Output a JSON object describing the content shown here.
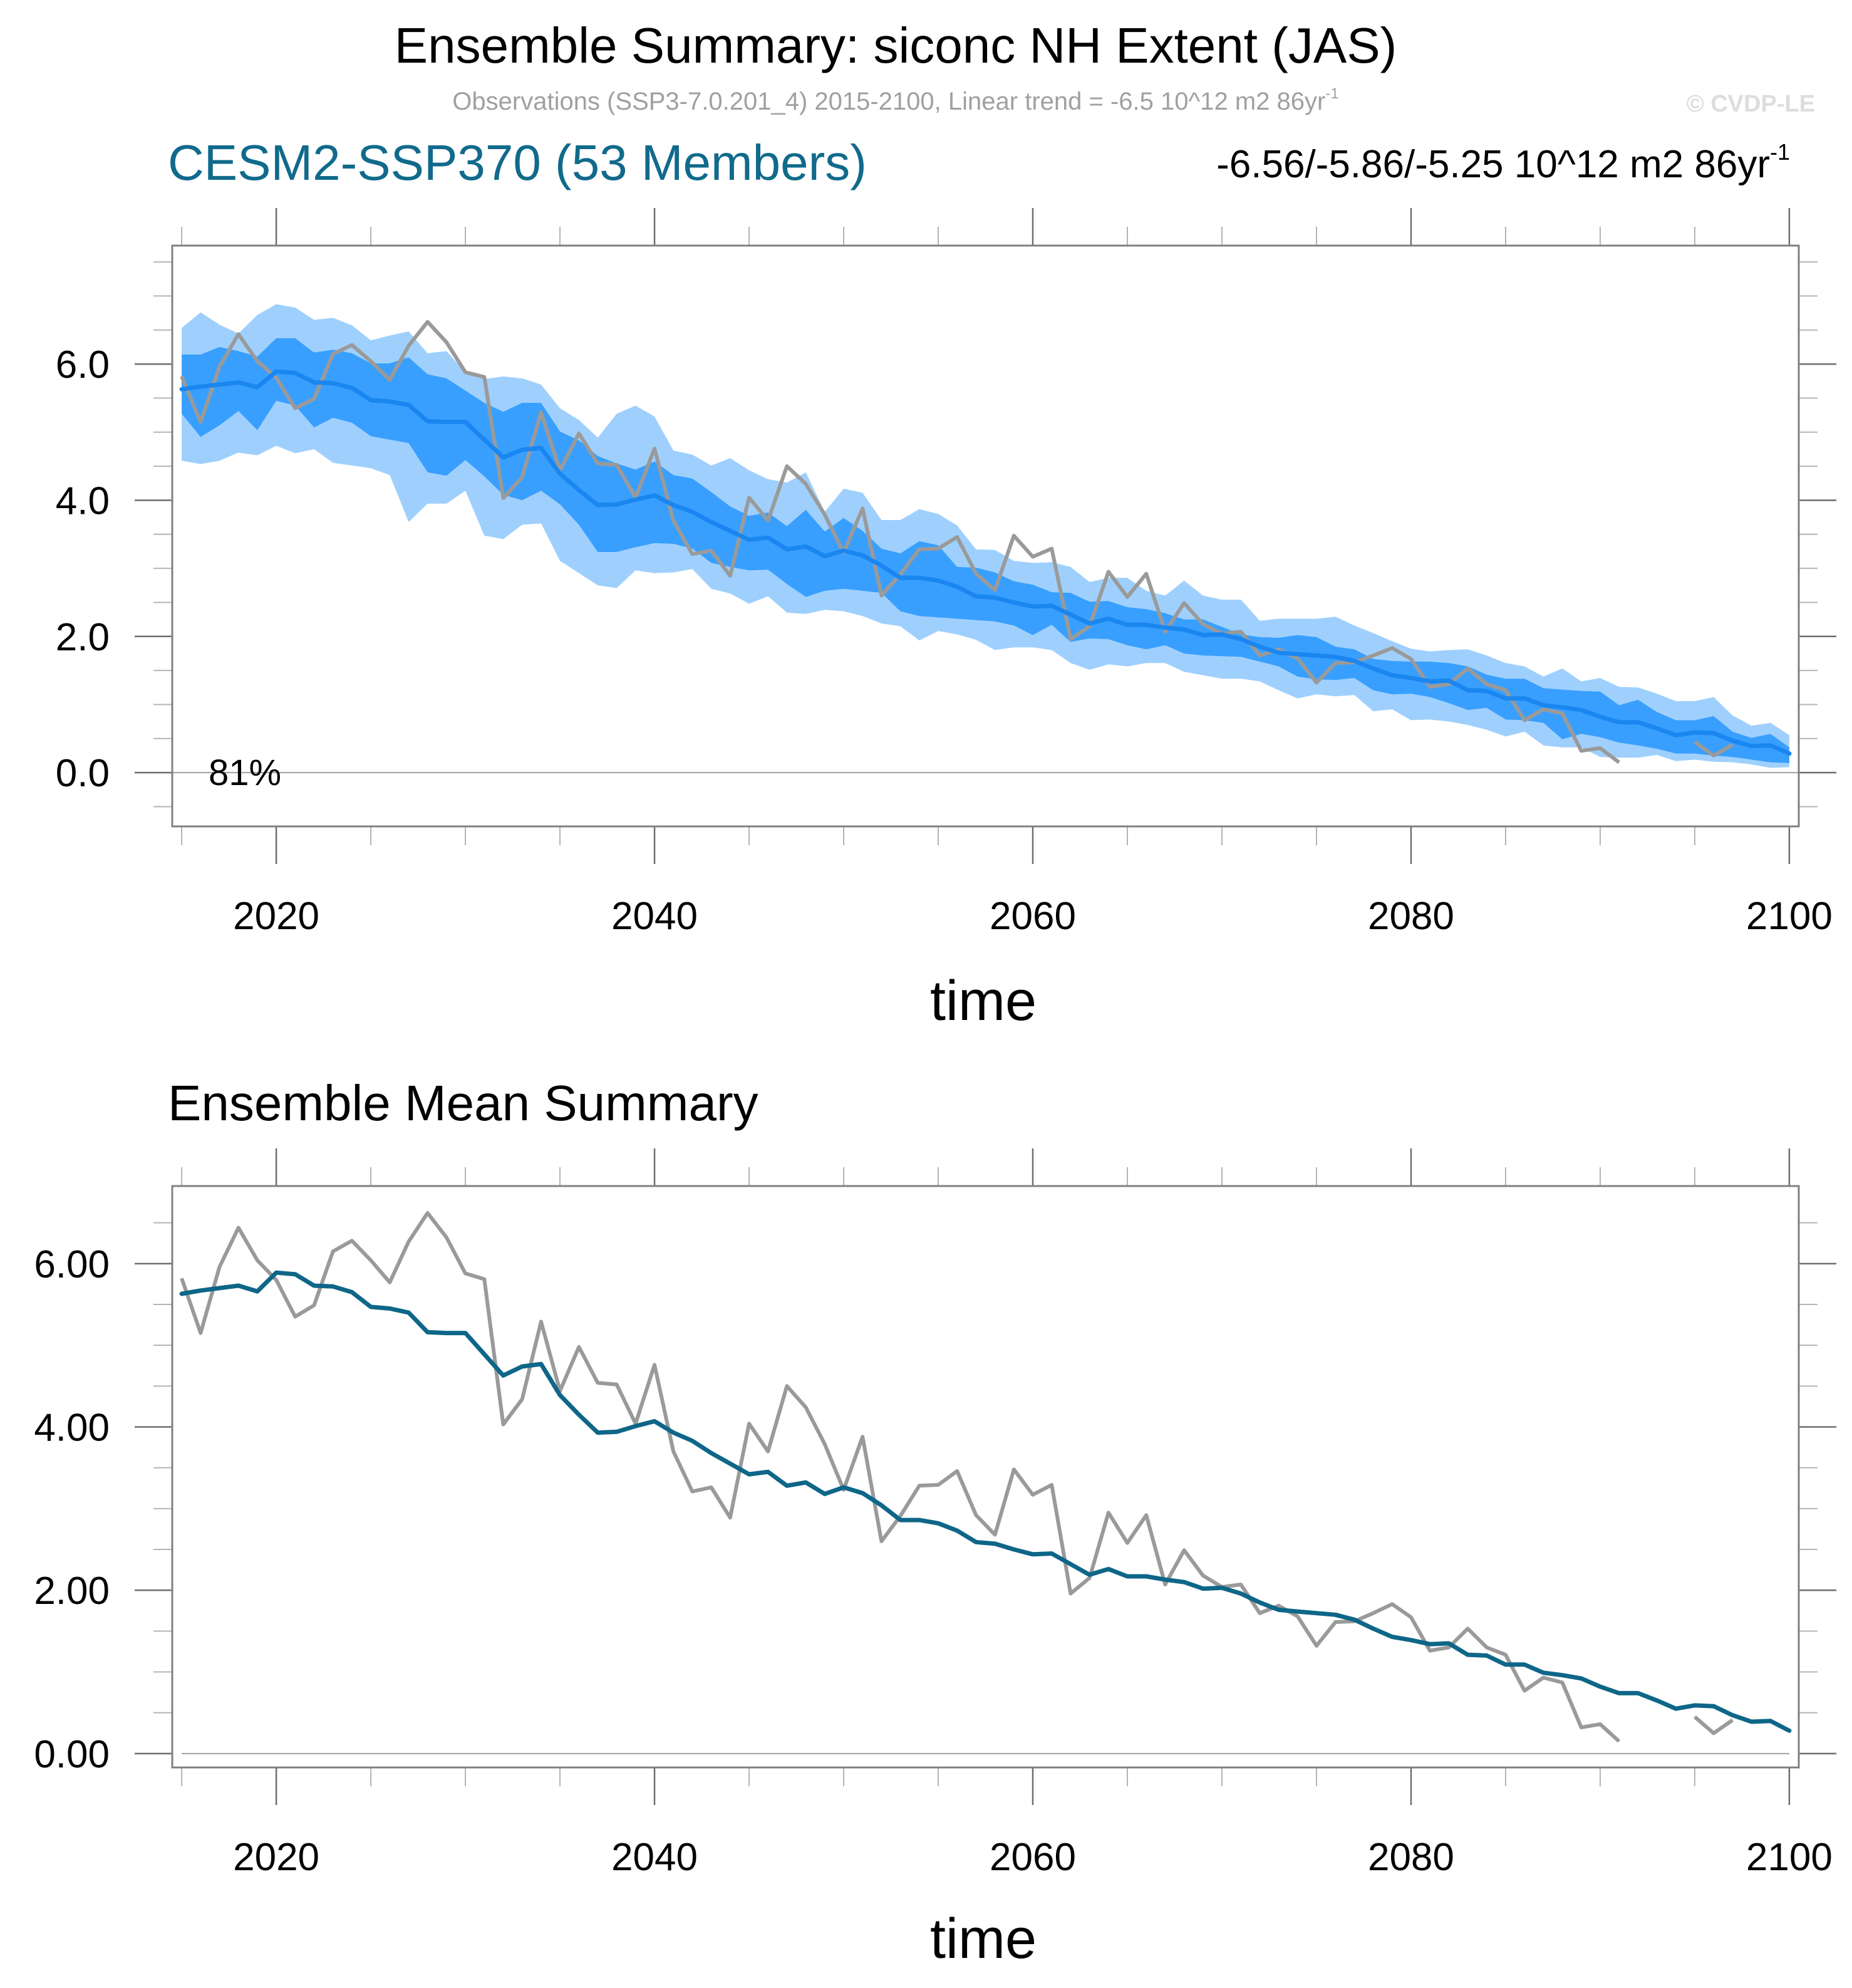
{
  "header": {
    "title": "Ensemble Summary: siconc NH Extent (JAS)",
    "subtitle": "Observations (SSP3-7.0.201_4) 2015-2100, Linear trend = -6.5 10^12 m2 86yr",
    "subtitle_superscript": "-1",
    "copyright": "© CVDP-LE",
    "model_title": "CESM2-SSP370 (53 Members)",
    "trend_range": "-6.56/-5.86/-5.25 10^12 m2 86yr",
    "trend_range_superscript": "-1"
  },
  "colors": {
    "outer_band": "#9fd0fd",
    "inner_band": "#399ffe",
    "mean_line_top": "#1a86f0",
    "mean_line_bottom": "#0e6688",
    "observations": "#9a9a9a",
    "model_title": "#106a8b",
    "subtitle": "#a0a0a0",
    "copyright": "#dddddd"
  },
  "chart_data": [
    {
      "type": "area",
      "name": "ensemble-summary",
      "title": "CESM2-SSP370 (53 Members)",
      "xlabel": "time",
      "ylabel": "",
      "xlim": [
        2014.5,
        2100.5
      ],
      "ylim": [
        -0.79,
        7.74
      ],
      "xticks": [
        2020,
        2040,
        2060,
        2080,
        2100
      ],
      "xtick_labels": [
        "2020",
        "2040",
        "2060",
        "2080",
        "2100"
      ],
      "yticks": [
        0,
        2,
        4,
        6
      ],
      "ytick_labels": [
        "0.0",
        "2.0",
        "4.0",
        "6.0"
      ],
      "annotation": "81%",
      "grid": false,
      "x_start": 2015,
      "series": [
        {
          "name": "Ensemble min/max (outer band upper)",
          "role": "outer_upper",
          "values": [
            6.53,
            6.76,
            6.58,
            6.45,
            6.72,
            6.88,
            6.83,
            6.65,
            6.68,
            6.57,
            6.35,
            6.42,
            6.48,
            6.16,
            6.19,
            5.88,
            5.78,
            5.82,
            5.79,
            5.7,
            5.35,
            5.18,
            4.92,
            5.27,
            5.39,
            5.23,
            4.73,
            4.67,
            4.51,
            4.62,
            4.44,
            4.31,
            4.26,
            4.41,
            3.83,
            4.17,
            4.11,
            3.71,
            3.71,
            3.87,
            3.8,
            3.63,
            3.28,
            3.27,
            3.11,
            3.08,
            3.09,
            3.02,
            2.8,
            2.86,
            2.86,
            2.67,
            2.6,
            2.82,
            2.6,
            2.54,
            2.54,
            2.23,
            2.26,
            2.26,
            2.26,
            2.29,
            2.16,
            2.05,
            1.93,
            1.82,
            1.78,
            1.8,
            1.81,
            1.72,
            1.61,
            1.56,
            1.41,
            1.53,
            1.34,
            1.39,
            1.26,
            1.25,
            1.16,
            1.05,
            1.05,
            1.11,
            0.84,
            0.69,
            0.73,
            0.55
          ]
        },
        {
          "name": "Ensemble inner band upper",
          "role": "inner_upper",
          "values": [
            6.14,
            6.14,
            6.25,
            6.19,
            6.11,
            6.38,
            6.38,
            6.17,
            6.21,
            6.16,
            6.01,
            6.01,
            6.1,
            5.85,
            5.79,
            5.61,
            5.43,
            5.3,
            5.43,
            5.43,
            5.01,
            4.88,
            4.65,
            4.54,
            4.45,
            4.57,
            4.37,
            4.32,
            4.12,
            3.91,
            3.77,
            3.82,
            3.62,
            3.86,
            3.54,
            3.74,
            3.55,
            3.29,
            3.22,
            3.4,
            3.34,
            3.02,
            3.01,
            2.94,
            2.81,
            2.76,
            2.65,
            2.64,
            2.51,
            2.52,
            2.43,
            2.4,
            2.34,
            2.25,
            2.25,
            2.14,
            2.03,
            1.99,
            1.98,
            2.02,
            1.99,
            1.85,
            1.81,
            1.67,
            1.64,
            1.63,
            1.63,
            1.61,
            1.56,
            1.44,
            1.38,
            1.38,
            1.24,
            1.22,
            1.2,
            1.19,
            0.99,
            1.07,
            0.89,
            0.77,
            0.77,
            0.83,
            0.6,
            0.51,
            0.57,
            0.37
          ]
        },
        {
          "name": "Ensemble inner band lower",
          "role": "inner_lower",
          "values": [
            5.27,
            4.93,
            5.1,
            5.31,
            5.03,
            5.46,
            5.39,
            5.07,
            5.21,
            5.14,
            4.94,
            4.89,
            4.84,
            4.41,
            4.36,
            4.59,
            4.35,
            4.08,
            4.0,
            4.14,
            3.94,
            3.64,
            3.24,
            3.24,
            3.31,
            3.37,
            3.36,
            3.29,
            3.08,
            3.02,
            2.97,
            2.98,
            2.77,
            2.58,
            2.67,
            2.7,
            2.67,
            2.64,
            2.37,
            2.3,
            2.28,
            2.26,
            2.24,
            2.22,
            2.16,
            2.02,
            2.17,
            1.92,
            1.97,
            1.96,
            1.87,
            1.81,
            1.87,
            1.75,
            1.72,
            1.71,
            1.7,
            1.63,
            1.56,
            1.41,
            1.37,
            1.36,
            1.39,
            1.21,
            1.15,
            1.16,
            1.11,
            1.02,
            0.92,
            0.95,
            0.78,
            0.77,
            0.73,
            0.49,
            0.57,
            0.52,
            0.44,
            0.4,
            0.35,
            0.28,
            0.28,
            0.25,
            0.23,
            0.19,
            0.15,
            0.14
          ]
        },
        {
          "name": "Ensemble min/max (outer band lower)",
          "role": "outer_lower",
          "values": [
            4.58,
            4.53,
            4.58,
            4.7,
            4.66,
            4.8,
            4.69,
            4.75,
            4.55,
            4.51,
            4.47,
            4.37,
            3.68,
            3.95,
            3.95,
            4.14,
            3.48,
            3.43,
            3.64,
            3.66,
            3.11,
            2.93,
            2.75,
            2.71,
            2.97,
            2.93,
            2.94,
            2.99,
            2.7,
            2.63,
            2.48,
            2.59,
            2.35,
            2.33,
            2.39,
            2.37,
            2.3,
            2.19,
            2.15,
            1.94,
            2.08,
            2.03,
            1.95,
            1.8,
            1.84,
            1.84,
            1.8,
            1.61,
            1.51,
            1.59,
            1.56,
            1.61,
            1.61,
            1.48,
            1.43,
            1.38,
            1.38,
            1.34,
            1.21,
            1.09,
            1.15,
            1.12,
            1.14,
            0.9,
            0.93,
            0.77,
            0.78,
            0.75,
            0.7,
            0.63,
            0.53,
            0.6,
            0.4,
            0.37,
            0.37,
            0.23,
            0.22,
            0.22,
            0.26,
            0.17,
            0.19,
            0.16,
            0.15,
            0.12,
            0.07,
            0.08
          ]
        },
        {
          "name": "Ensemble Mean",
          "role": "mean",
          "values": [
            5.63,
            5.67,
            5.7,
            5.73,
            5.66,
            5.89,
            5.87,
            5.73,
            5.72,
            5.65,
            5.47,
            5.45,
            5.4,
            5.16,
            5.15,
            5.15,
            4.89,
            4.63,
            4.74,
            4.77,
            4.39,
            4.15,
            3.93,
            3.94,
            4.01,
            4.07,
            3.93,
            3.83,
            3.68,
            3.55,
            3.42,
            3.45,
            3.28,
            3.32,
            3.18,
            3.26,
            3.19,
            3.04,
            2.86,
            2.86,
            2.82,
            2.73,
            2.59,
            2.57,
            2.5,
            2.44,
            2.45,
            2.32,
            2.19,
            2.26,
            2.17,
            2.17,
            2.13,
            2.1,
            2.02,
            2.03,
            1.96,
            1.85,
            1.76,
            1.74,
            1.72,
            1.7,
            1.64,
            1.53,
            1.43,
            1.39,
            1.34,
            1.35,
            1.21,
            1.2,
            1.09,
            1.09,
            0.99,
            0.96,
            0.92,
            0.82,
            0.74,
            0.74,
            0.65,
            0.55,
            0.59,
            0.58,
            0.47,
            0.39,
            0.4,
            0.28
          ]
        },
        {
          "name": "Observations (SSP3-7.0.201_4)",
          "role": "obs",
          "values": [
            5.82,
            5.15,
            5.96,
            6.44,
            6.04,
            5.8,
            5.35,
            5.49,
            6.15,
            6.28,
            6.04,
            5.77,
            6.27,
            6.62,
            6.32,
            5.88,
            5.81,
            4.03,
            4.34,
            5.29,
            4.44,
            4.98,
            4.54,
            4.52,
            4.04,
            4.76,
            3.7,
            3.21,
            3.26,
            2.89,
            4.04,
            3.7,
            4.5,
            4.24,
            3.79,
            3.23,
            3.88,
            2.6,
            2.91,
            3.28,
            3.29,
            3.46,
            2.92,
            2.68,
            3.48,
            3.17,
            3.29,
            1.96,
            2.15,
            2.95,
            2.58,
            2.92,
            2.07,
            2.49,
            2.18,
            2.04,
            2.07,
            1.72,
            1.81,
            1.68,
            1.32,
            1.61,
            1.62,
            1.72,
            1.83,
            1.67,
            1.26,
            1.3,
            1.53,
            1.3,
            1.21,
            0.77,
            0.93,
            0.87,
            0.32,
            0.36,
            0.15,
            null,
            null,
            null,
            0.45,
            0.25,
            0.41,
            null,
            null,
            null
          ]
        }
      ]
    },
    {
      "type": "line",
      "name": "ensemble-mean-summary",
      "title": "Ensemble Mean Summary",
      "xlabel": "time",
      "ylabel": "",
      "xlim": [
        2014.5,
        2100.5
      ],
      "ylim": [
        -0.17,
        6.95
      ],
      "xticks": [
        2020,
        2040,
        2060,
        2080,
        2100
      ],
      "xtick_labels": [
        "2020",
        "2040",
        "2060",
        "2080",
        "2100"
      ],
      "yticks": [
        0,
        2,
        4,
        6
      ],
      "ytick_labels": [
        "0.00",
        "2.00",
        "4.00",
        "6.00"
      ],
      "grid": false,
      "x_start": 2015,
      "series": [
        {
          "name": "Ensemble Mean",
          "role": "mean",
          "ref": "mean"
        },
        {
          "name": "Observations (SSP3-7.0.201_4)",
          "role": "obs",
          "ref": "obs"
        }
      ]
    }
  ]
}
